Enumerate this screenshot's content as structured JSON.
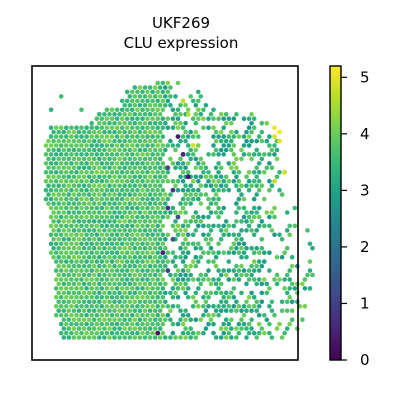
{
  "chart_data": {
    "type": "scatter",
    "title": [
      "UKF269",
      "CLU expression"
    ],
    "xlabel": "",
    "ylabel": "",
    "colormap": "viridis",
    "colorbar": {
      "range": [
        0,
        5.2
      ],
      "ticks": [
        0,
        1,
        2,
        3,
        4,
        5
      ],
      "tick_labels": [
        "0",
        "1",
        "2",
        "3",
        "4",
        "5"
      ]
    },
    "spot_grid": {
      "x_range": [
        0,
        52
      ],
      "y_range": [
        0,
        58
      ],
      "row_start": [
        22,
        17,
        16,
        16,
        15,
        15,
        12,
        10,
        10,
        10,
        1,
        1,
        1,
        0,
        0,
        0,
        0,
        0,
        0,
        0,
        0,
        0,
        0,
        0,
        0,
        0,
        0,
        0,
        1,
        1,
        1,
        1,
        1,
        1,
        1,
        1,
        1,
        1,
        1,
        1,
        2,
        2,
        2,
        2,
        2,
        2,
        2,
        2,
        2,
        2,
        2,
        2,
        2,
        3,
        3,
        3,
        3,
        3
      ],
      "row_end": [
        27,
        27,
        30,
        30,
        31,
        31,
        36,
        40,
        42,
        43,
        44,
        44,
        45,
        45,
        45,
        45,
        45,
        45,
        46,
        46,
        46,
        47,
        47,
        47,
        47,
        47,
        48,
        48,
        49,
        49,
        49,
        50,
        50,
        51,
        51,
        51,
        52,
        52,
        52,
        52,
        52,
        52,
        52,
        52,
        52,
        52,
        52,
        52,
        52,
        52,
        51,
        51,
        50,
        50,
        49,
        49,
        48,
        46
      ],
      "dense_boundary_x": 23,
      "values_left": {
        "mean": 3.6,
        "range": [
          3.0,
          4.4
        ]
      },
      "values_right": {
        "mean": 3.3,
        "range": [
          2.2,
          4.6
        ]
      }
    },
    "highlight_points": [
      {
        "x": 26,
        "y": 12,
        "value": 0.4
      },
      {
        "x": 27,
        "y": 16,
        "value": 0.6
      },
      {
        "x": 24,
        "y": 19,
        "value": 1.1
      },
      {
        "x": 28,
        "y": 21,
        "value": 0.3
      },
      {
        "x": 25,
        "y": 24,
        "value": 0.9
      },
      {
        "x": 24,
        "y": 28,
        "value": 0.7
      },
      {
        "x": 26,
        "y": 30,
        "value": 1.2
      },
      {
        "x": 25,
        "y": 35,
        "value": 1.4
      },
      {
        "x": 23,
        "y": 38,
        "value": 0.5
      },
      {
        "x": 24,
        "y": 42,
        "value": 1.0
      },
      {
        "x": 22,
        "y": 56,
        "value": 0.2
      },
      {
        "x": 45,
        "y": 10,
        "value": 5.1
      },
      {
        "x": 46,
        "y": 11,
        "value": 5.2
      },
      {
        "x": 45,
        "y": 12,
        "value": 4.9
      },
      {
        "x": 46,
        "y": 13,
        "value": 5.0
      },
      {
        "x": 47,
        "y": 20,
        "value": 4.8
      },
      {
        "x": 45,
        "y": 22,
        "value": 4.7
      },
      {
        "x": 29,
        "y": 14,
        "value": 4.9
      },
      {
        "x": 28,
        "y": 7,
        "value": 4.6
      },
      {
        "x": 27,
        "y": 4,
        "value": 4.7
      }
    ],
    "stray_points": [
      {
        "x": 3,
        "y": 3,
        "value": 3.6
      },
      {
        "x": 7,
        "y": 6,
        "value": 3.7
      },
      {
        "x": 9,
        "y": 9,
        "value": 3.5
      },
      {
        "x": 1,
        "y": 6,
        "value": 3.3
      }
    ],
    "grid": false,
    "legend": "colorbar-right"
  }
}
